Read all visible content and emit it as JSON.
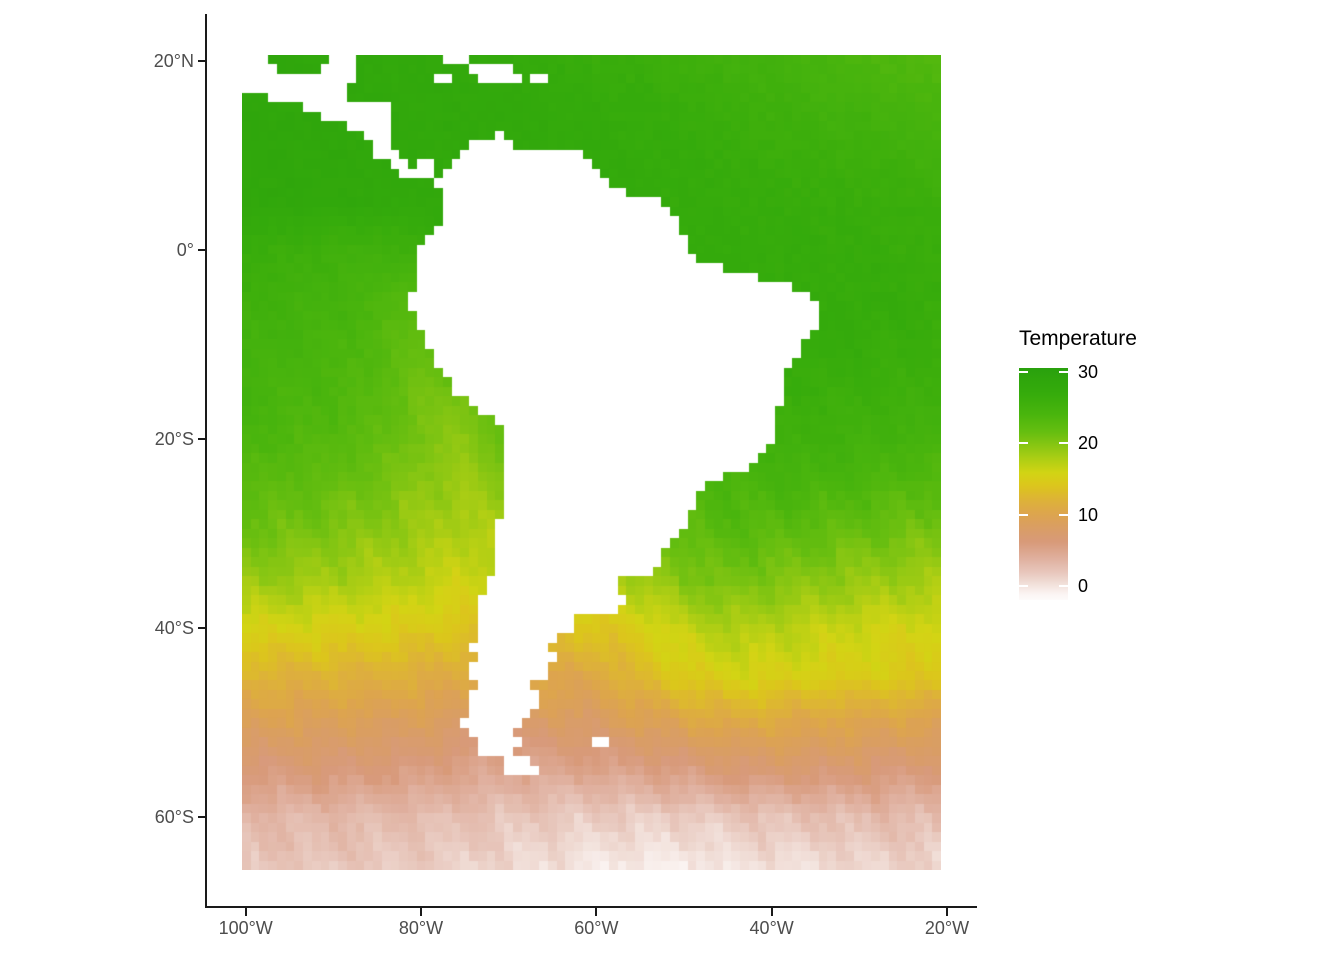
{
  "chart_data": {
    "type": "heatmap",
    "subtype": "raster-map-sea-surface-temperature",
    "region": "South America and surrounding oceans",
    "x_axis": {
      "label": "",
      "ticks": [
        {
          "label": "100°W",
          "lon": -100
        },
        {
          "label": "80°W",
          "lon": -80
        },
        {
          "label": "60°W",
          "lon": -60
        },
        {
          "label": "40°W",
          "lon": -40
        },
        {
          "label": "20°W",
          "lon": -20
        }
      ],
      "range_shown_lon": [
        -104.5,
        -16.5
      ]
    },
    "y_axis": {
      "label": "",
      "ticks": [
        {
          "label": "20°N",
          "lat": 20
        },
        {
          "label": "0°",
          "lat": 0
        },
        {
          "label": "20°S",
          "lat": -20
        },
        {
          "label": "40°S",
          "lat": -40
        },
        {
          "label": "60°S",
          "lat": -60
        }
      ],
      "range_shown_lat": [
        -69.5,
        24.8
      ]
    },
    "raster_extent": {
      "lon": [
        -100.4,
        -20.7
      ],
      "lat": [
        -65.6,
        20.6
      ],
      "cell_degrees": 1
    },
    "legend": {
      "title": "Temperature",
      "breaks": [
        {
          "label": "30",
          "value": 30
        },
        {
          "label": "20",
          "value": 20
        },
        {
          "label": "10",
          "value": 10
        },
        {
          "label": "0",
          "value": 0
        }
      ],
      "bar_value_top": 30.6,
      "bar_value_bottom": -2.0,
      "position": "right"
    },
    "colors": {
      "axis_line": "#1a1a1a",
      "axis_text": "#4d4d4d",
      "legend_text": "#000000",
      "land": "#ffffff",
      "background": "#ffffff",
      "colormap_stops": [
        {
          "t": 31,
          "color": "#28a00d"
        },
        {
          "t": 27,
          "color": "#35ab0c"
        },
        {
          "t": 24,
          "color": "#4ab50d"
        },
        {
          "t": 21.5,
          "color": "#67be10"
        },
        {
          "t": 19.5,
          "color": "#8cc713"
        },
        {
          "t": 17.5,
          "color": "#b3cf14"
        },
        {
          "t": 15.8,
          "color": "#d3d414"
        },
        {
          "t": 14,
          "color": "#dcc51c"
        },
        {
          "t": 12,
          "color": "#ddb238"
        },
        {
          "t": 10,
          "color": "#dda44e"
        },
        {
          "t": 8,
          "color": "#d99d66"
        },
        {
          "t": 6,
          "color": "#d89a7b"
        },
        {
          "t": 4,
          "color": "#dfae9c"
        },
        {
          "t": 2,
          "color": "#e7c5ba"
        },
        {
          "t": 0.5,
          "color": "#f0dcd5"
        },
        {
          "t": -1,
          "color": "#faf3f1"
        },
        {
          "t": -2.5,
          "color": "#ffffff"
        }
      ]
    },
    "grid": {
      "lons": [
        -100,
        -95,
        -90,
        -85,
        -80,
        -75,
        -70,
        -65,
        -60,
        -55,
        -50,
        -45,
        -40,
        -35,
        -30,
        -25,
        -20
      ],
      "lats": [
        20,
        15,
        10,
        5,
        0,
        -5,
        -10,
        -15,
        -20,
        -25,
        -30,
        -35,
        -40,
        -45,
        -50,
        -55,
        -60,
        -65
      ],
      "sst": [
        [
          28.5,
          28.5,
          28.3,
          28.0,
          27.8,
          27.8,
          27.5,
          27.0,
          26.5,
          26.2,
          25.8,
          25.3,
          25.0,
          24.5,
          24.0,
          23.5,
          23.0
        ],
        [
          28.5,
          28.5,
          28.5,
          28.2,
          28.0,
          28.0,
          27.8,
          27.5,
          27.2,
          26.8,
          26.5,
          26.0,
          25.6,
          25.2,
          25.0,
          24.5,
          24.0
        ],
        [
          28.5,
          28.5,
          28.5,
          28.2,
          28.0,
          28.0,
          28.0,
          27.8,
          27.5,
          27.2,
          27.0,
          26.6,
          26.2,
          26.0,
          25.8,
          25.5,
          25.0
        ],
        [
          28.2,
          28.2,
          28.0,
          28.0,
          27.8,
          27.8,
          27.8,
          27.6,
          27.5,
          27.2,
          27.0,
          27.0,
          26.8,
          26.6,
          26.4,
          26.2,
          26.0
        ],
        [
          26.5,
          26.0,
          25.5,
          25.2,
          26.0,
          27.2,
          27.5,
          27.5,
          27.5,
          27.5,
          27.2,
          27.0,
          27.0,
          27.0,
          26.8,
          26.5,
          26.2
        ],
        [
          25.8,
          25.2,
          24.8,
          24.0,
          22.8,
          26.0,
          27.2,
          27.5,
          27.5,
          27.5,
          27.2,
          27.0,
          27.0,
          27.0,
          27.0,
          26.8,
          26.5
        ],
        [
          25.2,
          24.8,
          24.2,
          23.2,
          21.8,
          24.0,
          25.5,
          26.0,
          26.2,
          26.5,
          26.8,
          26.8,
          26.8,
          27.0,
          26.8,
          26.5,
          26.2
        ],
        [
          24.8,
          24.2,
          23.8,
          22.8,
          21.0,
          20.5,
          23.5,
          24.5,
          25.0,
          25.5,
          25.8,
          26.0,
          26.2,
          26.2,
          26.0,
          25.8,
          25.5
        ],
        [
          24.0,
          23.5,
          23.0,
          22.0,
          20.5,
          19.5,
          22.0,
          23.0,
          23.8,
          24.2,
          24.8,
          25.2,
          25.5,
          25.5,
          25.2,
          24.8,
          24.5
        ],
        [
          22.8,
          22.2,
          21.8,
          21.0,
          19.5,
          18.5,
          20.0,
          21.0,
          22.0,
          22.8,
          23.5,
          24.0,
          24.2,
          24.2,
          23.8,
          23.2,
          22.8
        ],
        [
          21.0,
          20.8,
          20.2,
          19.5,
          18.5,
          17.5,
          18.0,
          19.0,
          20.0,
          21.0,
          22.0,
          22.8,
          22.5,
          22.0,
          21.5,
          21.0,
          20.5
        ],
        [
          19.0,
          18.8,
          18.2,
          17.8,
          17.0,
          16.0,
          16.5,
          16.5,
          17.0,
          18.5,
          20.0,
          20.8,
          20.2,
          19.5,
          19.0,
          18.5,
          18.2
        ],
        [
          15.5,
          15.5,
          15.2,
          15.0,
          14.5,
          14.0,
          14.0,
          14.0,
          14.0,
          15.0,
          16.8,
          17.8,
          17.5,
          16.8,
          16.2,
          15.8,
          15.5
        ],
        [
          12.0,
          12.0,
          12.0,
          11.8,
          11.5,
          11.0,
          10.5,
          10.5,
          10.5,
          13.0,
          14.5,
          15.5,
          15.5,
          15.0,
          14.8,
          14.5,
          14.2
        ],
        [
          9.2,
          9.2,
          9.0,
          8.8,
          8.5,
          8.0,
          7.5,
          8.0,
          8.0,
          9.0,
          10.0,
          10.8,
          10.8,
          10.2,
          10.0,
          9.8,
          9.5
        ],
        [
          6.2,
          6.2,
          6.2,
          6.0,
          5.8,
          5.2,
          4.8,
          4.8,
          5.0,
          5.2,
          5.8,
          6.5,
          6.8,
          6.8,
          6.5,
          6.2,
          6.2
        ],
        [
          3.2,
          3.2,
          3.2,
          3.0,
          2.8,
          2.5,
          2.2,
          1.8,
          1.5,
          1.5,
          1.5,
          2.0,
          2.2,
          2.5,
          2.8,
          2.8,
          2.8
        ],
        [
          2.0,
          2.0,
          2.0,
          1.8,
          1.5,
          1.2,
          0.8,
          0.2,
          -0.2,
          -0.5,
          -0.5,
          0.0,
          0.2,
          0.5,
          1.0,
          1.2,
          1.2
        ]
      ]
    },
    "land_polygons": {
      "south_america": [
        [
          -77.4,
          8.7
        ],
        [
          -76.9,
          8.5
        ],
        [
          -75.6,
          9.5
        ],
        [
          -75.0,
          10.7
        ],
        [
          -74.2,
          11.1
        ],
        [
          -71.9,
          11.7
        ],
        [
          -71.3,
          12.4
        ],
        [
          -70.1,
          11.6
        ],
        [
          -68.2,
          10.5
        ],
        [
          -66.1,
          10.6
        ],
        [
          -63.9,
          10.6
        ],
        [
          -61.9,
          10.7
        ],
        [
          -60.6,
          9.8
        ],
        [
          -60.0,
          8.5
        ],
        [
          -57.4,
          6.2
        ],
        [
          -55.0,
          5.9
        ],
        [
          -52.9,
          5.4
        ],
        [
          -51.4,
          4.2
        ],
        [
          -50.2,
          1.8
        ],
        [
          -49.2,
          0.2
        ],
        [
          -48.2,
          -0.9
        ],
        [
          -44.6,
          -2.2
        ],
        [
          -41.6,
          -2.8
        ],
        [
          -38.6,
          -3.7
        ],
        [
          -35.1,
          -5.3
        ],
        [
          -34.8,
          -7.2
        ],
        [
          -35.5,
          -9.2
        ],
        [
          -37.2,
          -11.2
        ],
        [
          -38.9,
          -13.1
        ],
        [
          -39.0,
          -15.6
        ],
        [
          -39.3,
          -17.6
        ],
        [
          -39.8,
          -19.6
        ],
        [
          -40.9,
          -21.3
        ],
        [
          -42.0,
          -22.9
        ],
        [
          -44.8,
          -23.3
        ],
        [
          -47.8,
          -24.9
        ],
        [
          -48.6,
          -27.0
        ],
        [
          -49.8,
          -28.9
        ],
        [
          -51.3,
          -30.6
        ],
        [
          -52.2,
          -32.2
        ],
        [
          -53.5,
          -33.8
        ],
        [
          -55.8,
          -34.8
        ],
        [
          -57.9,
          -34.3
        ],
        [
          -58.4,
          -34.1
        ],
        [
          -57.3,
          -35.7
        ],
        [
          -56.7,
          -36.9
        ],
        [
          -57.6,
          -38.2
        ],
        [
          -60.6,
          -38.9
        ],
        [
          -62.1,
          -38.8
        ],
        [
          -62.4,
          -40.9
        ],
        [
          -64.6,
          -40.7
        ],
        [
          -65.1,
          -42.1
        ],
        [
          -64.1,
          -42.6
        ],
        [
          -65.3,
          -43.6
        ],
        [
          -65.4,
          -45.0
        ],
        [
          -67.3,
          -46.1
        ],
        [
          -66.8,
          -47.1
        ],
        [
          -65.8,
          -47.9
        ],
        [
          -67.7,
          -49.0
        ],
        [
          -68.9,
          -50.1
        ],
        [
          -69.2,
          -51.2
        ],
        [
          -68.4,
          -52.3
        ],
        [
          -69.9,
          -52.5
        ],
        [
          -68.6,
          -53.4
        ],
        [
          -67.2,
          -54.1
        ],
        [
          -65.2,
          -54.7
        ],
        [
          -66.6,
          -55.3
        ],
        [
          -68.7,
          -55.6
        ],
        [
          -70.9,
          -54.9
        ],
        [
          -70.5,
          -53.6
        ],
        [
          -73.0,
          -53.3
        ],
        [
          -73.6,
          -52.1
        ],
        [
          -74.9,
          -51.0
        ],
        [
          -75.1,
          -49.7
        ],
        [
          -74.4,
          -48.5
        ],
        [
          -74.8,
          -47.3
        ],
        [
          -73.9,
          -46.0
        ],
        [
          -74.5,
          -44.8
        ],
        [
          -73.8,
          -43.4
        ],
        [
          -74.3,
          -42.2
        ],
        [
          -73.9,
          -41.0
        ],
        [
          -74.0,
          -39.8
        ],
        [
          -73.6,
          -38.1
        ],
        [
          -73.3,
          -36.7
        ],
        [
          -72.4,
          -35.2
        ],
        [
          -71.7,
          -33.3
        ],
        [
          -71.6,
          -31.5
        ],
        [
          -71.3,
          -29.8
        ],
        [
          -70.9,
          -27.6
        ],
        [
          -70.5,
          -25.6
        ],
        [
          -70.4,
          -23.4
        ],
        [
          -70.1,
          -21.2
        ],
        [
          -70.3,
          -19.5
        ],
        [
          -70.9,
          -18.2
        ],
        [
          -72.2,
          -17.5
        ],
        [
          -74.4,
          -16.4
        ],
        [
          -76.0,
          -15.2
        ],
        [
          -76.9,
          -14.0
        ],
        [
          -77.7,
          -12.4
        ],
        [
          -79.2,
          -10.3
        ],
        [
          -80.3,
          -8.1
        ],
        [
          -81.3,
          -6.2
        ],
        [
          -81.1,
          -5.0
        ],
        [
          -80.4,
          -4.3
        ],
        [
          -81.1,
          -3.4
        ],
        [
          -80.6,
          -2.3
        ],
        [
          -80.9,
          -1.2
        ],
        [
          -80.4,
          -0.1
        ],
        [
          -79.6,
          0.9
        ],
        [
          -78.8,
          1.5
        ],
        [
          -77.6,
          2.9
        ],
        [
          -77.3,
          4.0
        ],
        [
          -77.5,
          5.5
        ],
        [
          -78.2,
          6.7
        ],
        [
          -77.9,
          7.6
        ]
      ],
      "central_america": [
        [
          -100.5,
          20.7
        ],
        [
          -97.2,
          20.7
        ],
        [
          -96.8,
          19.8
        ],
        [
          -95.9,
          18.9
        ],
        [
          -94.4,
          18.2
        ],
        [
          -92.9,
          18.5
        ],
        [
          -91.6,
          18.8
        ],
        [
          -90.6,
          19.6
        ],
        [
          -90.4,
          20.7
        ],
        [
          -87.2,
          20.7
        ],
        [
          -87.4,
          19.6
        ],
        [
          -87.7,
          18.4
        ],
        [
          -88.3,
          17.4
        ],
        [
          -88.3,
          16.3
        ],
        [
          -88.9,
          15.9
        ],
        [
          -87.2,
          16.0
        ],
        [
          -85.6,
          15.9
        ],
        [
          -84.4,
          15.4
        ],
        [
          -83.2,
          15.0
        ],
        [
          -83.4,
          13.2
        ],
        [
          -83.6,
          11.6
        ],
        [
          -82.8,
          10.0
        ],
        [
          -81.7,
          9.0
        ],
        [
          -80.6,
          8.9
        ],
        [
          -79.4,
          9.5
        ],
        [
          -78.3,
          9.3
        ],
        [
          -77.7,
          8.6
        ],
        [
          -78.2,
          8.0
        ],
        [
          -79.9,
          7.3
        ],
        [
          -81.3,
          7.5
        ],
        [
          -83.0,
          8.3
        ],
        [
          -83.8,
          9.4
        ],
        [
          -84.8,
          9.9
        ],
        [
          -85.4,
          10.7
        ],
        [
          -85.9,
          11.3
        ],
        [
          -86.8,
          12.1
        ],
        [
          -87.8,
          12.9
        ],
        [
          -89.4,
          13.3
        ],
        [
          -91.4,
          13.9
        ],
        [
          -92.4,
          14.7
        ],
        [
          -94.0,
          15.8
        ],
        [
          -95.6,
          16.1
        ],
        [
          -96.6,
          15.8
        ],
        [
          -98.1,
          16.3
        ],
        [
          -99.8,
          16.8
        ],
        [
          -100.5,
          17.3
        ]
      ],
      "cuba_east": [
        [
          -78.4,
          20.7
        ],
        [
          -74.2,
          20.7
        ],
        [
          -74.2,
          20.0
        ],
        [
          -75.9,
          19.9
        ],
        [
          -78.4,
          20.3
        ]
      ],
      "hispaniola": [
        [
          -74.5,
          19.9
        ],
        [
          -70.8,
          19.9
        ],
        [
          -68.5,
          18.6
        ],
        [
          -68.5,
          18.1
        ],
        [
          -71.7,
          17.6
        ],
        [
          -74.5,
          18.3
        ]
      ],
      "jamaica": [
        [
          -78.2,
          18.6
        ],
        [
          -76.3,
          18.6
        ],
        [
          -76.3,
          17.8
        ],
        [
          -78.2,
          17.8
        ]
      ],
      "puerto_rico": [
        [
          -67.2,
          18.5
        ],
        [
          -65.7,
          18.5
        ],
        [
          -65.7,
          17.9
        ],
        [
          -67.2,
          17.9
        ]
      ],
      "falkland_islands": [
        [
          -60.6,
          -51.3
        ],
        [
          -58.7,
          -51.3
        ],
        [
          -58.7,
          -52.3
        ],
        [
          -60.6,
          -52.3
        ]
      ]
    }
  }
}
